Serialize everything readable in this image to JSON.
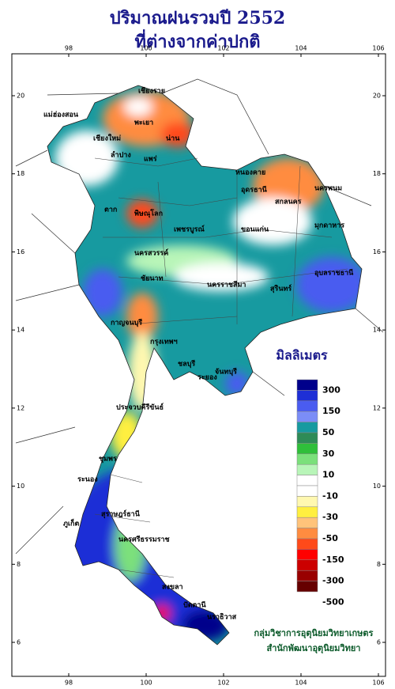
{
  "title": [
    "ปริมาณฝนรวมปี  2552",
    "ที่ต่างจากค่าปกติ"
  ],
  "longitude_ticks": [
    98,
    100,
    102,
    104,
    106
  ],
  "latitude_ticks": [
    6,
    8,
    10,
    12,
    14,
    16,
    18,
    20
  ],
  "legend": {
    "title": "มิลลิเมตร",
    "colors": [
      "#00008b",
      "#1e2fd6",
      "#4a5cf0",
      "#7b8df7",
      "#179aa0",
      "#2e8b57",
      "#2fbf3a",
      "#7be07b",
      "#b8f5b8",
      "#ffffff",
      "#ffffff",
      "#fff8b0",
      "#ffef40",
      "#ffc37a",
      "#ff8c40",
      "#ff4a1a",
      "#ff0000",
      "#cc0000",
      "#990000",
      "#660000"
    ],
    "ticks": [
      300,
      150,
      50,
      30,
      10,
      -10,
      -30,
      -50,
      -150,
      -300,
      -500
    ]
  },
  "places": [
    "เชียงราย",
    "เชียงใหม่",
    "พะเยา",
    "น่าน",
    "ลำปาง",
    "แพร่",
    "แม่ฮ่องสอน",
    "หนองคาย",
    "อุดรธานี",
    "นครพนม",
    "สกลนคร",
    "มุกดาหาร",
    "ตาก",
    "พิษณุโลก",
    "เพชรบูรณ์",
    "ขอนแก่น",
    "นครสวรรค์",
    "ชัยนาท",
    "นครราชสีมา",
    "อุบลราชธานี",
    "สุรินทร์",
    "กาญจนบุรี",
    "กรุงเทพฯ",
    "ชลบุรี",
    "ระยอง",
    "จันทบุรี",
    "ประจวบคีรีขันธ์",
    "ชุมพร",
    "ระนอง",
    "สุราษฎร์ธานี",
    "นครศรีธรรมราช",
    "ภูเก็ต",
    "สงขลา",
    "ปัตตานี",
    "นราธิวาส"
  ],
  "credit": [
    "กลุ่มวิชาการอุตุนิยมวิทยาเกษตร",
    "สำนักพัฒนาอุตุนิยมวิทยา"
  ]
}
